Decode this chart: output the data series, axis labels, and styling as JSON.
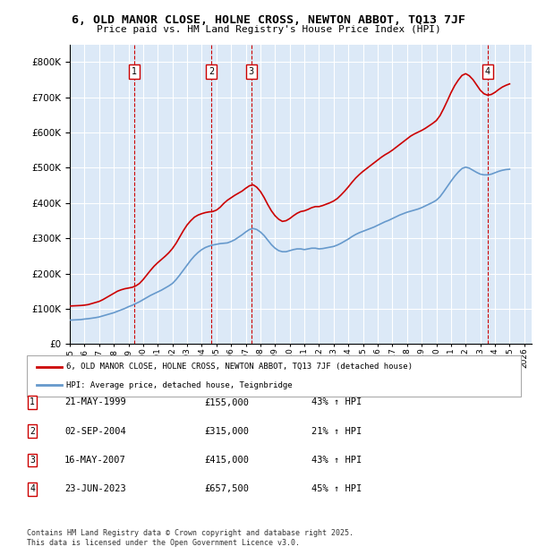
{
  "title": "6, OLD MANOR CLOSE, HOLNE CROSS, NEWTON ABBOT, TQ13 7JF",
  "subtitle": "Price paid vs. HM Land Registry's House Price Index (HPI)",
  "ylabel_ticks": [
    "£0",
    "£100K",
    "£200K",
    "£300K",
    "£400K",
    "£500K",
    "£600K",
    "£700K",
    "£800K"
  ],
  "ylim": [
    0,
    850000
  ],
  "xlim_start": 1995.0,
  "xlim_end": 2026.5,
  "background_color": "#dce9f7",
  "plot_bg": "#dce9f7",
  "grid_color": "#ffffff",
  "red_line_color": "#cc0000",
  "blue_line_color": "#6699cc",
  "legend_label_red": "6, OLD MANOR CLOSE, HOLNE CROSS, NEWTON ABBOT, TQ13 7JF (detached house)",
  "legend_label_blue": "HPI: Average price, detached house, Teignbridge",
  "transactions": [
    {
      "num": 1,
      "date": "21-MAY-1999",
      "price": 155000,
      "pct": "43%",
      "year": 1999.38
    },
    {
      "num": 2,
      "date": "02-SEP-2004",
      "price": 315000,
      "pct": "21%",
      "year": 2004.67
    },
    {
      "num": 3,
      "date": "16-MAY-2007",
      "price": 415000,
      "pct": "43%",
      "year": 2007.37
    },
    {
      "num": 4,
      "date": "23-JUN-2023",
      "price": 657500,
      "pct": "45%",
      "year": 2023.48
    }
  ],
  "footnote": "Contains HM Land Registry data © Crown copyright and database right 2025.\nThis data is licensed under the Open Government Licence v3.0.",
  "hpi_years": [
    1995.0,
    1995.25,
    1995.5,
    1995.75,
    1996.0,
    1996.25,
    1996.5,
    1996.75,
    1997.0,
    1997.25,
    1997.5,
    1997.75,
    1998.0,
    1998.25,
    1998.5,
    1998.75,
    1999.0,
    1999.25,
    1999.5,
    1999.75,
    2000.0,
    2000.25,
    2000.5,
    2000.75,
    2001.0,
    2001.25,
    2001.5,
    2001.75,
    2002.0,
    2002.25,
    2002.5,
    2002.75,
    2003.0,
    2003.25,
    2003.5,
    2003.75,
    2004.0,
    2004.25,
    2004.5,
    2004.75,
    2005.0,
    2005.25,
    2005.5,
    2005.75,
    2006.0,
    2006.25,
    2006.5,
    2006.75,
    2007.0,
    2007.25,
    2007.5,
    2007.75,
    2008.0,
    2008.25,
    2008.5,
    2008.75,
    2009.0,
    2009.25,
    2009.5,
    2009.75,
    2010.0,
    2010.25,
    2010.5,
    2010.75,
    2011.0,
    2011.25,
    2011.5,
    2011.75,
    2012.0,
    2012.25,
    2012.5,
    2012.75,
    2013.0,
    2013.25,
    2013.5,
    2013.75,
    2014.0,
    2014.25,
    2014.5,
    2014.75,
    2015.0,
    2015.25,
    2015.5,
    2015.75,
    2016.0,
    2016.25,
    2016.5,
    2016.75,
    2017.0,
    2017.25,
    2017.5,
    2017.75,
    2018.0,
    2018.25,
    2018.5,
    2018.75,
    2019.0,
    2019.25,
    2019.5,
    2019.75,
    2020.0,
    2020.25,
    2020.5,
    2020.75,
    2021.0,
    2021.25,
    2021.5,
    2021.75,
    2022.0,
    2022.25,
    2022.5,
    2022.75,
    2023.0,
    2023.25,
    2023.5,
    2023.75,
    2024.0,
    2024.25,
    2024.5,
    2024.75,
    2025.0
  ],
  "hpi_values": [
    68000,
    68500,
    69000,
    69500,
    71000,
    72000,
    73500,
    75000,
    77000,
    80000,
    83000,
    86000,
    89000,
    93000,
    97000,
    101000,
    106000,
    110000,
    115000,
    120000,
    126000,
    132000,
    138000,
    143000,
    148000,
    153000,
    159000,
    165000,
    172000,
    183000,
    196000,
    210000,
    224000,
    238000,
    250000,
    260000,
    268000,
    274000,
    278000,
    281000,
    283000,
    285000,
    286000,
    287000,
    291000,
    296000,
    303000,
    310000,
    318000,
    325000,
    328000,
    325000,
    318000,
    308000,
    295000,
    282000,
    272000,
    265000,
    262000,
    262000,
    265000,
    268000,
    270000,
    270000,
    268000,
    270000,
    272000,
    272000,
    270000,
    271000,
    273000,
    275000,
    277000,
    281000,
    286000,
    292000,
    298000,
    305000,
    311000,
    316000,
    320000,
    324000,
    328000,
    332000,
    337000,
    342000,
    347000,
    351000,
    356000,
    361000,
    366000,
    370000,
    374000,
    377000,
    380000,
    383000,
    387000,
    392000,
    397000,
    402000,
    408000,
    418000,
    432000,
    447000,
    462000,
    476000,
    488000,
    498000,
    502000,
    499000,
    493000,
    487000,
    482000,
    480000,
    480000,
    482000,
    486000,
    490000,
    493000,
    495000,
    496000
  ],
  "price_line_years": [
    1995.0,
    1995.25,
    1995.5,
    1995.75,
    1996.0,
    1996.25,
    1996.5,
    1996.75,
    1997.0,
    1997.25,
    1997.5,
    1997.75,
    1998.0,
    1998.25,
    1998.5,
    1998.75,
    1999.0,
    1999.25,
    1999.5,
    1999.75,
    2000.0,
    2000.25,
    2000.5,
    2000.75,
    2001.0,
    2001.25,
    2001.5,
    2001.75,
    2002.0,
    2002.25,
    2002.5,
    2002.75,
    2003.0,
    2003.25,
    2003.5,
    2003.75,
    2004.0,
    2004.25,
    2004.5,
    2004.75,
    2005.0,
    2005.25,
    2005.5,
    2005.75,
    2006.0,
    2006.25,
    2006.5,
    2006.75,
    2007.0,
    2007.25,
    2007.5,
    2007.75,
    2008.0,
    2008.25,
    2008.5,
    2008.75,
    2009.0,
    2009.25,
    2009.5,
    2009.75,
    2010.0,
    2010.25,
    2010.5,
    2010.75,
    2011.0,
    2011.25,
    2011.5,
    2011.75,
    2012.0,
    2012.25,
    2012.5,
    2012.75,
    2013.0,
    2013.25,
    2013.5,
    2013.75,
    2014.0,
    2014.25,
    2014.5,
    2014.75,
    2015.0,
    2015.25,
    2015.5,
    2015.75,
    2016.0,
    2016.25,
    2016.5,
    2016.75,
    2017.0,
    2017.25,
    2017.5,
    2017.75,
    2018.0,
    2018.25,
    2018.5,
    2018.75,
    2019.0,
    2019.25,
    2019.5,
    2019.75,
    2020.0,
    2020.25,
    2020.5,
    2020.75,
    2021.0,
    2021.25,
    2021.5,
    2021.75,
    2022.0,
    2022.25,
    2022.5,
    2022.75,
    2023.0,
    2023.25,
    2023.5,
    2023.75,
    2024.0,
    2024.25,
    2024.5,
    2024.75,
    2025.0
  ],
  "price_line_values": [
    108000,
    108500,
    109000,
    109500,
    110500,
    112000,
    115000,
    118000,
    121000,
    126000,
    132000,
    138000,
    144000,
    150000,
    154000,
    157000,
    159000,
    161000,
    165000,
    172000,
    183000,
    196000,
    209000,
    221000,
    231000,
    240000,
    249000,
    259000,
    271000,
    286000,
    304000,
    322000,
    338000,
    350000,
    360000,
    366000,
    370000,
    373000,
    375000,
    376000,
    380000,
    388000,
    399000,
    408000,
    415000,
    422000,
    428000,
    434000,
    442000,
    449000,
    452000,
    445000,
    433000,
    416000,
    396000,
    378000,
    364000,
    354000,
    348000,
    350000,
    356000,
    364000,
    371000,
    376000,
    378000,
    382000,
    387000,
    390000,
    390000,
    393000,
    397000,
    401000,
    406000,
    413000,
    423000,
    434000,
    446000,
    459000,
    471000,
    481000,
    490000,
    498000,
    506000,
    514000,
    522000,
    530000,
    537000,
    543000,
    550000,
    558000,
    566000,
    574000,
    582000,
    590000,
    596000,
    601000,
    606000,
    612000,
    619000,
    626000,
    634000,
    648000,
    668000,
    690000,
    713000,
    733000,
    749000,
    762000,
    767000,
    761000,
    750000,
    735000,
    720000,
    710000,
    706000,
    708000,
    714000,
    722000,
    729000,
    734000,
    738000
  ]
}
